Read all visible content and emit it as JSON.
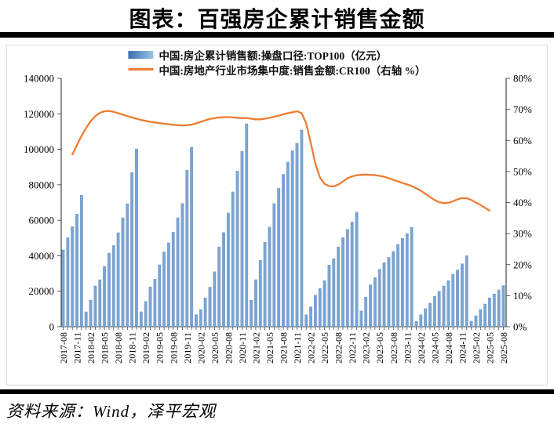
{
  "header": {
    "title": "图表：百强房企累计销售金额"
  },
  "footer": {
    "source": "资料来源：Wind，泽平宏观"
  },
  "legend": [
    {
      "type": "bar",
      "label": "中国:房企累计销售额:操盘口径:TOP100（亿元）"
    },
    {
      "type": "line",
      "label": "中国:房地产行业市场集中度:销售金额:CR100（右轴 %）"
    }
  ],
  "colors": {
    "bar_fill": "#7BA4D2",
    "bar_edge": "#6795C8",
    "legend_bar_gradient_left": "#3A6FB0",
    "legend_bar_gradient_right": "#9CC2E5",
    "line": "#ED7D31",
    "axis": "#333333",
    "text": "#000000"
  },
  "chart_data": {
    "type": "bar+line",
    "title": "图表：百强房企累计销售金额",
    "x_monthly_start": "2017-08",
    "x_monthly_end": "2025-08",
    "months_count": 97,
    "x_tick_labels": [
      "2017-08",
      "2017-11",
      "2018-02",
      "2018-05",
      "2018-08",
      "2018-11",
      "2019-02",
      "2019-05",
      "2019-08",
      "2019-11",
      "2020-02",
      "2020-05",
      "2020-08",
      "2020-11",
      "2021-02",
      "2021-05",
      "2021-08",
      "2021-11",
      "2022-02",
      "2022-05",
      "2022-08",
      "2022-11",
      "2023-02",
      "2023-05",
      "2023-08",
      "2023-11",
      "2024-02",
      "2024-05",
      "2024-08",
      "2024-11",
      "2025-02",
      "2025-05",
      "2025-08"
    ],
    "left_axis": {
      "min": 0,
      "max": 140000,
      "step": 20000,
      "suffix": ""
    },
    "right_axis": {
      "min": 0,
      "max": 80,
      "step": 10,
      "suffix": "%"
    },
    "grid": false,
    "legend_position": "top-center",
    "series": [
      {
        "name": "中国:房企累计销售额:操盘口径:TOP100（亿元）",
        "type": "bar",
        "axis": "left",
        "values": [
          43300,
          50200,
          56400,
          63500,
          74100,
          8400,
          15000,
          23000,
          26500,
          34000,
          41500,
          45900,
          53000,
          61400,
          69300,
          87000,
          100200,
          8400,
          14300,
          22400,
          26800,
          34900,
          42200,
          47300,
          53300,
          61400,
          69500,
          88300,
          101200,
          6800,
          9700,
          16300,
          22300,
          31000,
          45000,
          53100,
          64100,
          76000,
          87800,
          98900,
          114400,
          15000,
          26500,
          37400,
          47700,
          56200,
          69400,
          78000,
          85900,
          92800,
          99200,
          103500,
          110900,
          6800,
          11200,
          17800,
          21600,
          26000,
          34800,
          38400,
          45000,
          50300,
          54900,
          59100,
          64600,
          8900,
          16700,
          23600,
          27700,
          32400,
          36100,
          39100,
          42400,
          46400,
          49800,
          52500,
          56000,
          3000,
          6800,
          10200,
          13300,
          17100,
          20000,
          23000,
          26000,
          29500,
          32000,
          35500,
          40000,
          3100,
          6200,
          9700,
          12800,
          16300,
          18500,
          20800,
          23200
        ]
      },
      {
        "name": "中国:房地产行业市场集中度:销售金额:CR100（右轴 %）",
        "type": "line",
        "axis": "right",
        "values": [
          null,
          null,
          55.5,
          58.5,
          61.5,
          64.0,
          66.2,
          67.8,
          68.9,
          69.4,
          69.5,
          69.2,
          68.8,
          68.3,
          67.8,
          67.4,
          67.0,
          66.6,
          66.3,
          66.0,
          65.8,
          65.6,
          65.4,
          65.2,
          65.0,
          64.9,
          64.8,
          64.9,
          65.1,
          65.5,
          66.0,
          66.5,
          66.9,
          67.2,
          67.4,
          67.5,
          67.5,
          67.4,
          67.3,
          67.2,
          67.2,
          67.0,
          66.8,
          66.8,
          67.0,
          67.3,
          67.6,
          68.0,
          68.4,
          68.8,
          69.1,
          69.4,
          68.8,
          65.5,
          59.1,
          52.5,
          48.0,
          46.0,
          45.3,
          45.2,
          45.8,
          46.8,
          47.8,
          48.4,
          48.8,
          48.9,
          49.0,
          48.9,
          48.8,
          48.6,
          48.3,
          47.8,
          47.3,
          46.8,
          46.3,
          45.8,
          45.3,
          44.6,
          43.8,
          42.8,
          41.8,
          40.8,
          40.1,
          39.8,
          39.9,
          40.4,
          41.0,
          41.5,
          41.4,
          40.8,
          40.0,
          39.2,
          38.3,
          37.4,
          null,
          null,
          null
        ]
      }
    ]
  }
}
